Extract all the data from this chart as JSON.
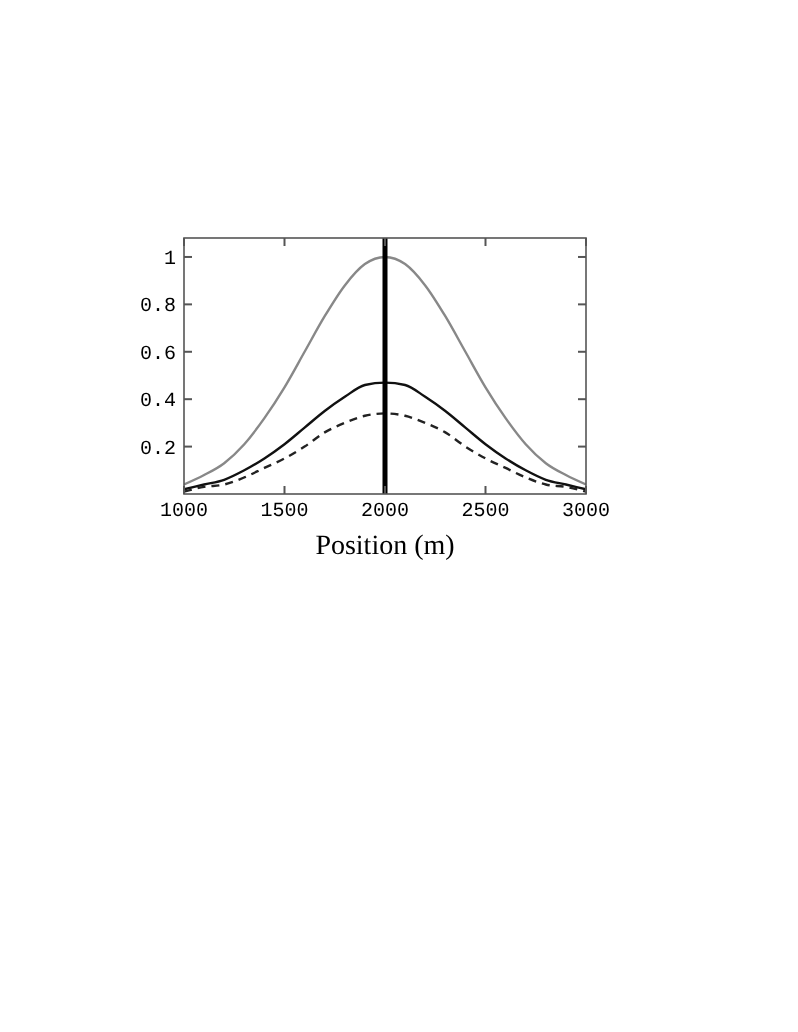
{
  "chart_data": {
    "type": "line",
    "xlabel": "Position (m)",
    "xlim": [
      1000,
      3000
    ],
    "ylim": [
      0,
      1.08
    ],
    "xticks": [
      1000,
      1500,
      2000,
      2500,
      3000
    ],
    "yticks": [
      0.2,
      0.4,
      0.6,
      0.8,
      1
    ],
    "x": [
      1000,
      1100,
      1200,
      1300,
      1400,
      1500,
      1600,
      1700,
      1800,
      1900,
      2000,
      2100,
      2200,
      2300,
      2400,
      2500,
      2600,
      2700,
      2800,
      2900,
      3000
    ],
    "series": [
      {
        "color": "#888888",
        "line_style": "solid",
        "values": [
          0.04,
          0.08,
          0.13,
          0.21,
          0.32,
          0.45,
          0.6,
          0.75,
          0.88,
          0.97,
          1,
          0.97,
          0.88,
          0.75,
          0.6,
          0.45,
          0.32,
          0.21,
          0.13,
          0.08,
          0.04
        ]
      },
      {
        "color": "#111111",
        "line_style": "solid",
        "values": [
          0.02,
          0.04,
          0.06,
          0.1,
          0.15,
          0.21,
          0.28,
          0.35,
          0.41,
          0.46,
          0.47,
          0.46,
          0.41,
          0.35,
          0.28,
          0.21,
          0.15,
          0.1,
          0.06,
          0.04,
          0.02
        ]
      },
      {
        "color": "#222222",
        "line_style": "dashed",
        "values": [
          0.01,
          0.03,
          0.04,
          0.07,
          0.11,
          0.15,
          0.2,
          0.26,
          0.3,
          0.33,
          0.34,
          0.33,
          0.3,
          0.26,
          0.2,
          0.15,
          0.11,
          0.07,
          0.04,
          0.03,
          0.01
        ]
      }
    ],
    "ref_lines": [
      {
        "axis": "x",
        "value": 2000,
        "color": "#000000"
      }
    ],
    "grid": false,
    "marker": "none"
  }
}
